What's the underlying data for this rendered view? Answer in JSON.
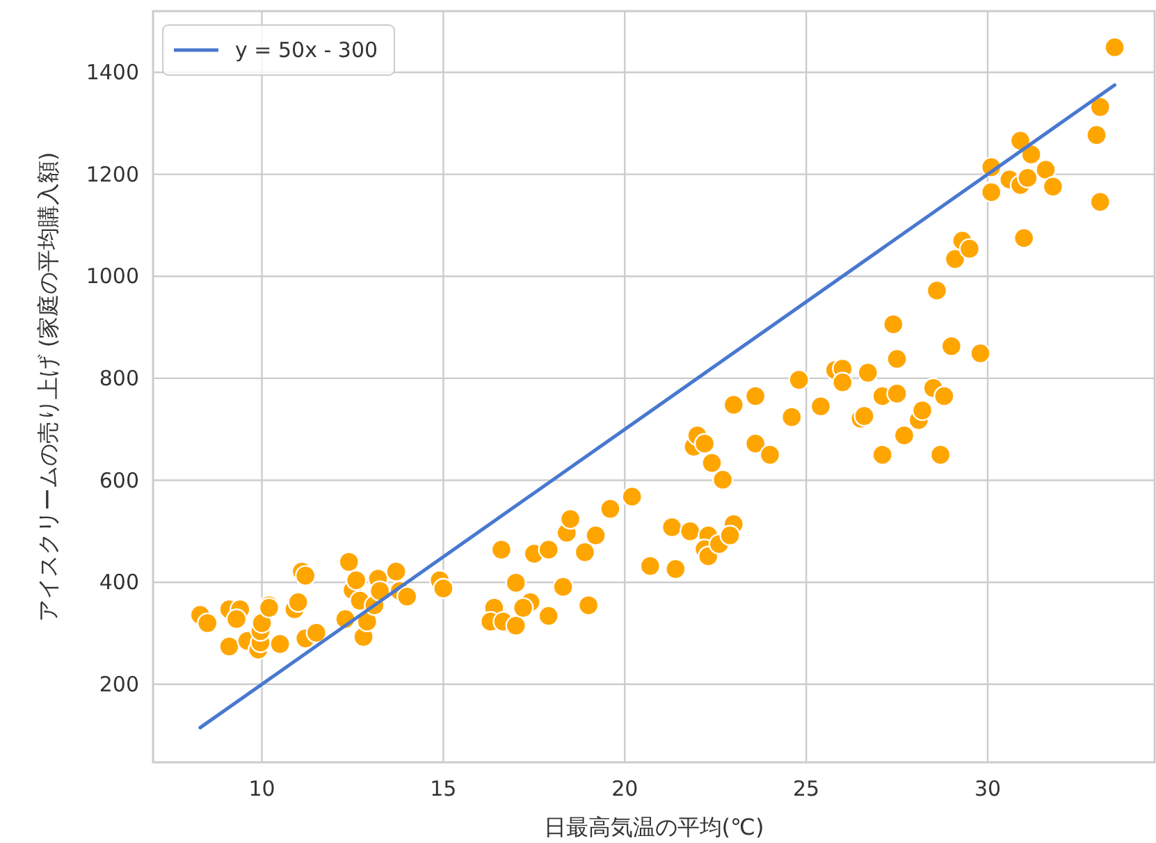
{
  "chart_data": {
    "type": "scatter",
    "xlabel": "日最高気温の平均(℃)",
    "ylabel": "アイスクリームの売り上げ (家庭の平均購入額)",
    "xlim": [
      7.0,
      34.6
    ],
    "ylim": [
      47,
      1520
    ],
    "xticks": [
      10,
      15,
      20,
      25,
      30
    ],
    "yticks": [
      200,
      400,
      600,
      800,
      1000,
      1200,
      1400
    ],
    "grid": true,
    "legend": "top left",
    "series": [
      {
        "color": "#ffa500",
        "x": [
          8.3,
          8.5,
          9.1,
          9.1,
          9.4,
          9.3,
          9.6,
          9.9,
          9.96,
          9.96,
          10.0,
          10.2,
          10.2,
          10.5,
          10.9,
          11.0,
          11.1,
          11.2,
          11.2,
          11.5,
          12.3,
          12.4,
          12.5,
          12.6,
          12.7,
          12.8,
          12.9,
          13.1,
          13.2,
          13.25,
          13.7,
          13.8,
          14.0,
          14.9,
          15.0,
          16.6,
          16.4,
          16.3,
          16.65,
          17.0,
          17.0,
          17.4,
          17.2,
          17.9,
          17.5,
          17.9,
          18.3,
          18.4,
          18.5,
          18.9,
          19.0,
          19.2,
          19.6,
          20.2,
          20.7,
          21.3,
          21.4,
          21.8,
          22.3,
          23.0,
          22.2,
          22.3,
          22.6,
          22.9,
          21.9,
          22.0,
          22.2,
          22.4,
          22.7,
          23.0,
          23.6,
          23.6,
          24.0,
          24.6,
          24.8,
          25.4,
          25.8,
          26.0,
          26.0,
          26.7,
          26.5,
          26.6,
          27.1,
          27.1,
          27.5,
          27.5,
          27.4,
          27.7,
          28.1,
          28.2,
          28.5,
          28.8,
          28.7,
          28.6,
          29.0,
          29.8,
          29.1,
          29.3,
          29.5,
          31.0,
          33.5,
          33.1,
          33.0,
          33.1,
          30.9,
          31.2,
          31.6,
          31.8,
          30.6,
          30.9,
          31.1,
          30.1,
          30.1
        ],
        "values": [
          336,
          320,
          274,
          347,
          347,
          328,
          285,
          268,
          282,
          304,
          320,
          355,
          350,
          279,
          347,
          361,
          421,
          413,
          290,
          301,
          328,
          440,
          385,
          404,
          364,
          293,
          323,
          355,
          407,
          383,
          421,
          383,
          372,
          404,
          388,
          464,
          350,
          323,
          323,
          315,
          399,
          361,
          350,
          334,
          456,
          464,
          391,
          497,
          524,
          459,
          355,
          492,
          544,
          568,
          432,
          508,
          426,
          500,
          492,
          514,
          465,
          451,
          475,
          492,
          666,
          688,
          672,
          634,
          601,
          748,
          765,
          672,
          650,
          724,
          797,
          745,
          816,
          819,
          792,
          811,
          721,
          726,
          765,
          650,
          770,
          838,
          906,
          688,
          718,
          737,
          781,
          765,
          650,
          972,
          863,
          849,
          1034,
          1070,
          1054,
          1075,
          1449,
          1332,
          1277,
          1146,
          1266,
          1239,
          1209,
          1176,
          1190,
          1179,
          1193,
          1214,
          1165
        ]
      },
      {
        "type": "line",
        "name": "y = 50x - 300",
        "color": "#4878d0",
        "x": [
          8.3,
          33.5
        ],
        "values": [
          115,
          1375
        ]
      }
    ]
  }
}
